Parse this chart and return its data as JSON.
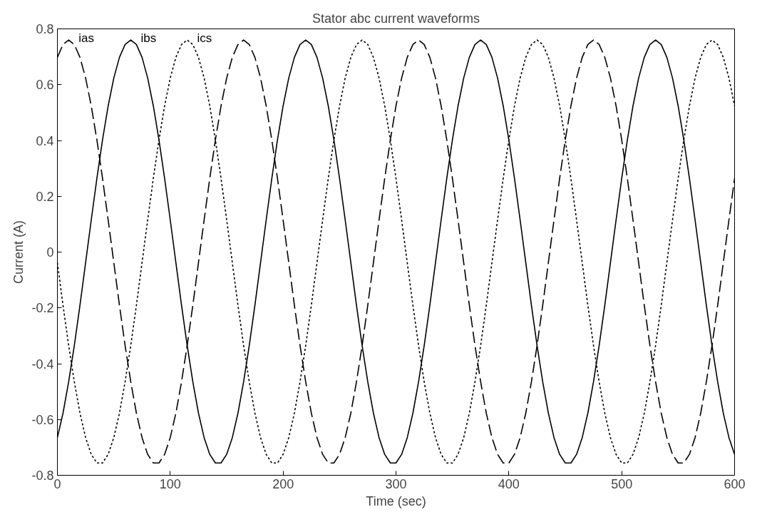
{
  "chart_data": {
    "type": "line",
    "title": "Stator abc current waveforms",
    "xlabel": "Time (sec)",
    "ylabel": "Current (A)",
    "x": [
      0,
      5,
      10,
      15,
      20,
      25,
      30,
      35,
      40,
      45,
      50,
      55,
      60,
      65,
      70,
      75,
      80,
      85,
      90,
      95,
      100,
      105,
      110,
      115,
      120,
      125,
      130,
      135,
      140,
      145,
      150,
      155,
      160,
      165,
      170,
      175,
      180,
      185,
      190,
      195,
      200,
      205,
      210,
      215,
      220,
      225,
      230,
      235,
      240,
      245,
      250,
      255,
      260,
      265,
      270,
      275,
      280,
      285,
      290,
      295,
      300,
      305,
      310,
      315,
      320,
      325,
      330,
      335,
      340,
      345,
      350,
      355,
      360,
      365,
      370,
      375,
      380,
      385,
      390,
      395,
      400,
      405,
      410,
      415,
      420,
      425,
      430,
      435,
      440,
      445,
      450,
      455,
      460,
      465,
      470,
      475,
      480,
      485,
      490,
      495,
      500,
      505,
      510,
      515,
      520,
      525,
      530,
      535,
      540,
      545,
      550,
      555,
      560,
      565,
      570,
      575,
      580,
      585,
      590,
      595,
      600
    ],
    "series": [
      {
        "name": "ias",
        "color": "#000000",
        "line_style": "dashed",
        "values": [
          0.698,
          0.744,
          0.76,
          0.744,
          0.698,
          0.624,
          0.524,
          0.402,
          0.264,
          0.115,
          -0.038,
          -0.191,
          -0.335,
          -0.465,
          -0.577,
          -0.665,
          -0.725,
          -0.756,
          -0.756,
          -0.725,
          -0.665,
          -0.577,
          -0.465,
          -0.335,
          -0.191,
          -0.038,
          0.115,
          0.264,
          0.402,
          0.524,
          0.624,
          0.698,
          0.744,
          0.76,
          0.744,
          0.698,
          0.624,
          0.524,
          0.402,
          0.264,
          0.115,
          -0.038,
          -0.191,
          -0.335,
          -0.465,
          -0.577,
          -0.665,
          -0.725,
          -0.756,
          -0.756,
          -0.725,
          -0.665,
          -0.577,
          -0.465,
          -0.335,
          -0.191,
          -0.038,
          0.115,
          0.264,
          0.402,
          0.524,
          0.624,
          0.698,
          0.744,
          0.76,
          0.744,
          0.698,
          0.624,
          0.524,
          0.402,
          0.264,
          0.115,
          -0.038,
          -0.191,
          -0.335,
          -0.465,
          -0.577,
          -0.665,
          -0.725,
          -0.756,
          -0.756,
          -0.725,
          -0.665,
          -0.577,
          -0.465,
          -0.335,
          -0.191,
          -0.038,
          0.115,
          0.264,
          0.402,
          0.524,
          0.624,
          0.698,
          0.744,
          0.76,
          0.744,
          0.698,
          0.624,
          0.524,
          0.402,
          0.264,
          0.115,
          -0.038,
          -0.191,
          -0.335,
          -0.465,
          -0.577,
          -0.665,
          -0.725,
          -0.756,
          -0.756,
          -0.725,
          -0.665,
          -0.577,
          -0.465,
          -0.335,
          -0.191,
          -0.038,
          0.115,
          0.264
        ]
      },
      {
        "name": "ibs",
        "color": "#000000",
        "line_style": "solid",
        "values": [
          -0.665,
          -0.577,
          -0.465,
          -0.335,
          -0.191,
          -0.038,
          0.115,
          0.264,
          0.402,
          0.524,
          0.624,
          0.698,
          0.744,
          0.76,
          0.744,
          0.698,
          0.624,
          0.524,
          0.402,
          0.264,
          0.115,
          -0.038,
          -0.191,
          -0.335,
          -0.465,
          -0.577,
          -0.665,
          -0.725,
          -0.756,
          -0.756,
          -0.725,
          -0.665,
          -0.577,
          -0.465,
          -0.335,
          -0.191,
          -0.038,
          0.115,
          0.264,
          0.402,
          0.524,
          0.624,
          0.698,
          0.744,
          0.76,
          0.744,
          0.698,
          0.624,
          0.524,
          0.402,
          0.264,
          0.115,
          -0.038,
          -0.191,
          -0.335,
          -0.465,
          -0.577,
          -0.665,
          -0.725,
          -0.756,
          -0.756,
          -0.725,
          -0.665,
          -0.577,
          -0.465,
          -0.335,
          -0.191,
          -0.038,
          0.115,
          0.264,
          0.402,
          0.524,
          0.624,
          0.698,
          0.744,
          0.76,
          0.744,
          0.698,
          0.624,
          0.524,
          0.402,
          0.264,
          0.115,
          -0.038,
          -0.191,
          -0.335,
          -0.465,
          -0.577,
          -0.665,
          -0.725,
          -0.756,
          -0.756,
          -0.725,
          -0.665,
          -0.577,
          -0.465,
          -0.335,
          -0.191,
          -0.038,
          0.115,
          0.264,
          0.402,
          0.524,
          0.624,
          0.698,
          0.744,
          0.76,
          0.744,
          0.698,
          0.624,
          0.524,
          0.402,
          0.264,
          0.115,
          -0.038,
          -0.191,
          -0.335,
          -0.465,
          -0.577,
          -0.665,
          -0.725
        ]
      },
      {
        "name": "ics",
        "color": "#000000",
        "line_style": "dotted",
        "values": [
          -0.038,
          -0.191,
          -0.335,
          -0.465,
          -0.577,
          -0.665,
          -0.725,
          -0.756,
          -0.756,
          -0.725,
          -0.665,
          -0.577,
          -0.465,
          -0.335,
          -0.191,
          -0.038,
          0.115,
          0.264,
          0.402,
          0.524,
          0.624,
          0.698,
          0.744,
          0.76,
          0.744,
          0.698,
          0.624,
          0.524,
          0.402,
          0.264,
          0.115,
          -0.038,
          -0.191,
          -0.335,
          -0.465,
          -0.577,
          -0.665,
          -0.725,
          -0.756,
          -0.756,
          -0.725,
          -0.665,
          -0.577,
          -0.465,
          -0.335,
          -0.191,
          -0.038,
          0.115,
          0.264,
          0.402,
          0.524,
          0.624,
          0.698,
          0.744,
          0.76,
          0.744,
          0.698,
          0.624,
          0.524,
          0.402,
          0.264,
          0.115,
          -0.038,
          -0.191,
          -0.335,
          -0.465,
          -0.577,
          -0.665,
          -0.725,
          -0.756,
          -0.756,
          -0.725,
          -0.665,
          -0.577,
          -0.465,
          -0.335,
          -0.191,
          -0.038,
          0.115,
          0.264,
          0.402,
          0.524,
          0.624,
          0.698,
          0.744,
          0.76,
          0.744,
          0.698,
          0.624,
          0.524,
          0.402,
          0.264,
          0.115,
          -0.038,
          -0.191,
          -0.335,
          -0.465,
          -0.577,
          -0.665,
          -0.725,
          -0.756,
          -0.756,
          -0.725,
          -0.665,
          -0.577,
          -0.465,
          -0.335,
          -0.191,
          -0.038,
          0.115,
          0.264,
          0.402,
          0.524,
          0.624,
          0.698,
          0.744,
          0.76,
          0.744,
          0.698,
          0.624,
          0.524
        ]
      }
    ],
    "xlim": [
      0,
      600
    ],
    "ylim": [
      -0.8,
      0.8
    ],
    "xticks": [
      0,
      100,
      200,
      300,
      400,
      500,
      600
    ],
    "yticks": [
      -0.8,
      -0.6,
      -0.4,
      -0.2,
      0,
      0.2,
      0.4,
      0.6,
      0.8
    ],
    "grid": false,
    "legend": false
  }
}
